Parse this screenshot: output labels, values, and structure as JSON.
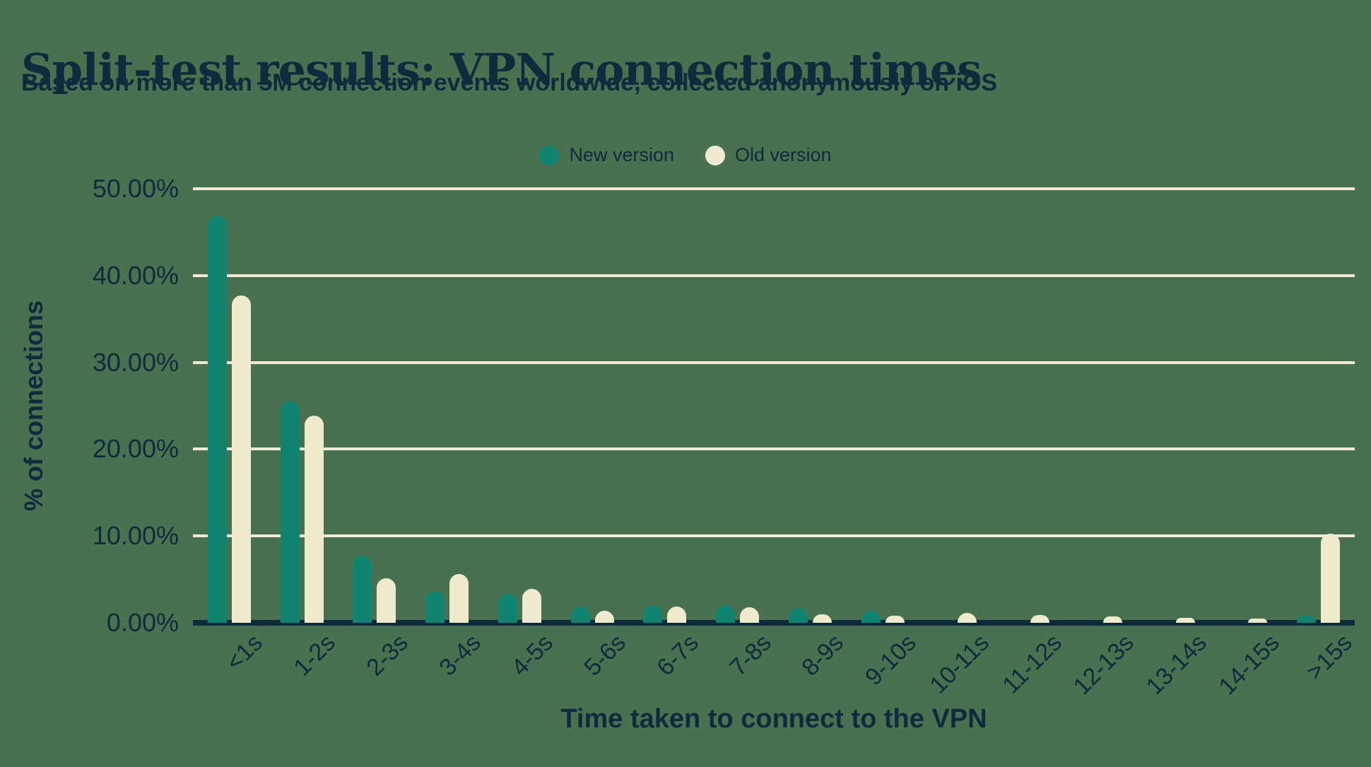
{
  "title": "Split-test results: VPN connection times",
  "subtitle": "Based on more than 5M connection events worldwide, collected anonymously on iOS",
  "colors": {
    "background": "#497150",
    "text_navy": "#0E2B3D",
    "series_new": "#0F8470",
    "series_old": "#F0EACF",
    "gridline": "#F0EBD4",
    "axis_line": "#0E2B3D"
  },
  "legend": {
    "items": [
      {
        "label": "New version",
        "color": "#0F8470"
      },
      {
        "label": "Old version",
        "color": "#F0EACF"
      }
    ]
  },
  "chart_data": {
    "type": "bar",
    "title": "Split-test results: VPN connection times",
    "subtitle": "Based on more than 5M connection events worldwide, collected anonymously on iOS",
    "categories": [
      "<1s",
      "1-2s",
      "2-3s",
      "3-4s",
      "4-5s",
      "5-6s",
      "6-7s",
      "7-8s",
      "8-9s",
      "9-10s",
      "10-11s",
      "11-12s",
      "12-13s",
      "13-14s",
      "14-15s",
      ">15s"
    ],
    "series": [
      {
        "name": "New version",
        "color": "#0F8470",
        "values": [
          46.9,
          25.6,
          7.7,
          3.7,
          3.3,
          1.9,
          2.0,
          2.0,
          1.7,
          1.4,
          0,
          0,
          0,
          0,
          0,
          0.9
        ]
      },
      {
        "name": "Old version",
        "color": "#F0EACF",
        "values": [
          37.7,
          23.9,
          5.1,
          5.6,
          3.9,
          1.4,
          1.9,
          1.8,
          1.0,
          0.8,
          1.1,
          0.9,
          0.7,
          0.6,
          0.5,
          10.3
        ]
      }
    ],
    "xlabel": "Time taken to connect to the VPN",
    "ylabel": "% of connections",
    "ylim": [
      0,
      50
    ],
    "yticks": [
      {
        "value": 0,
        "label": "0.00%"
      },
      {
        "value": 10,
        "label": "10.00%"
      },
      {
        "value": 20,
        "label": "20.00%"
      },
      {
        "value": 30,
        "label": "30.00%"
      },
      {
        "value": 40,
        "label": "40.00%"
      },
      {
        "value": 50,
        "label": "50.00%"
      }
    ],
    "grid": true,
    "legend_position": "top",
    "bar_style": "rounded-top"
  }
}
